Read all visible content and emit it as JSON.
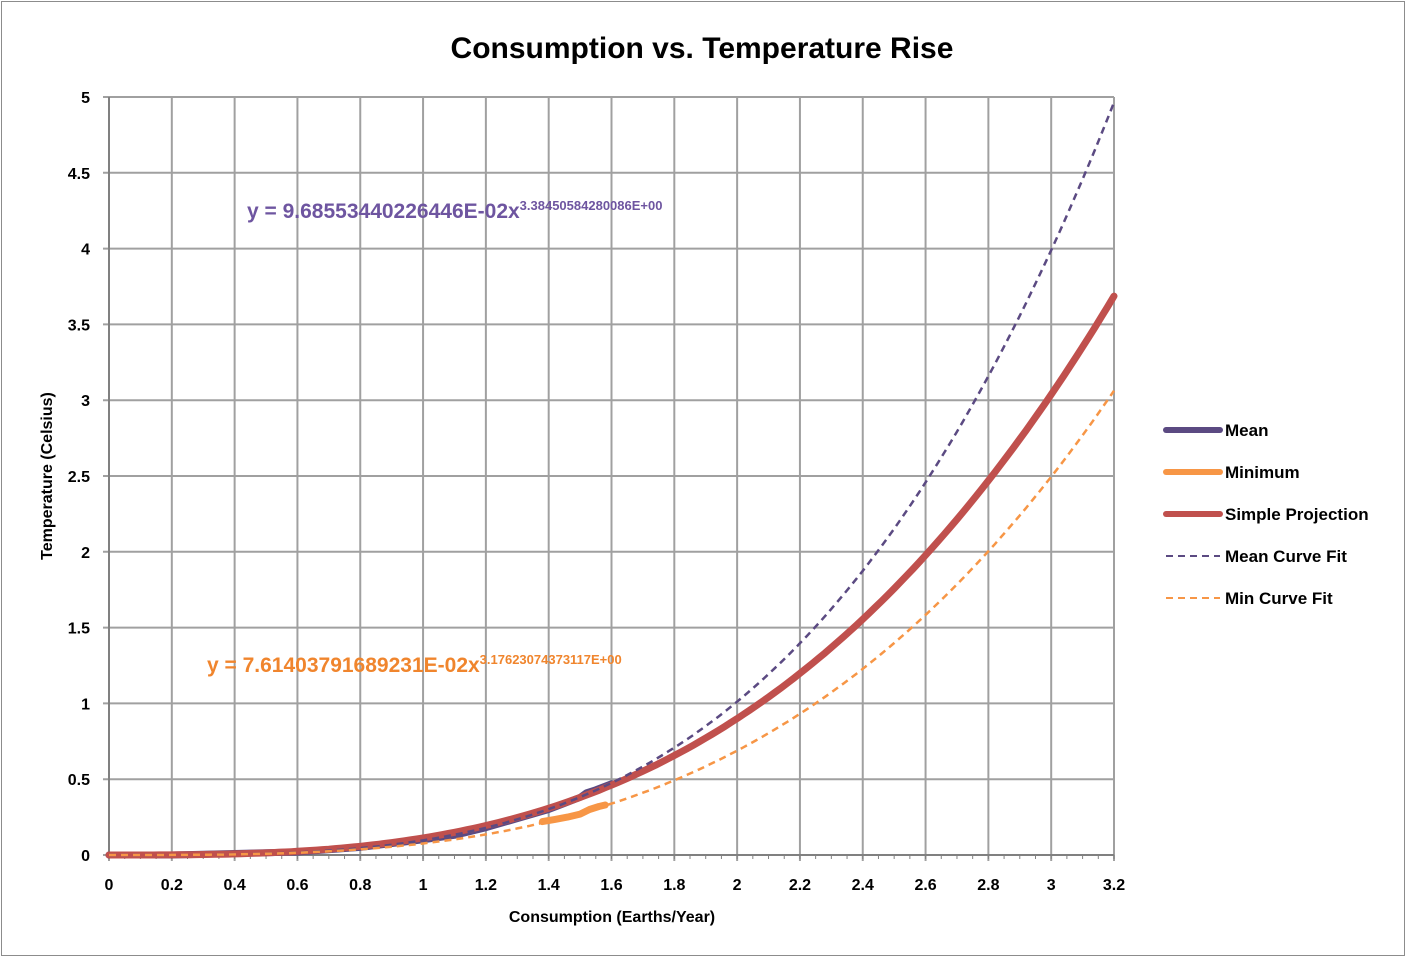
{
  "chart_data": {
    "type": "line",
    "title": "Consumption vs. Temperature Rise",
    "xlabel": "Consumption (Earths/Year)",
    "ylabel": "Temperature (Celsius)",
    "xlim": [
      0,
      3.2
    ],
    "ylim": [
      0,
      5
    ],
    "xticks": [
      "0",
      "0.2",
      "0.4",
      "0.6",
      "0.8",
      "1",
      "1.2",
      "1.4",
      "1.6",
      "1.8",
      "2",
      "2.2",
      "2.4",
      "2.6",
      "2.8",
      "3",
      "3.2"
    ],
    "yticks": [
      "0",
      "0.5",
      "1",
      "1.5",
      "2",
      "2.5",
      "3",
      "3.5",
      "4",
      "4.5",
      "5"
    ],
    "grid": true,
    "legend_position": "right",
    "series": [
      {
        "name": "Mean",
        "style": "solid-thick",
        "color": "#5b4a82",
        "x": [
          0,
          0.2,
          0.4,
          0.6,
          0.8,
          1.0,
          1.1,
          1.2,
          1.3,
          1.4,
          1.45,
          1.5,
          1.52,
          1.55,
          1.6
        ],
        "y": [
          0,
          0.0,
          0.01,
          0.02,
          0.05,
          0.1,
          0.13,
          0.18,
          0.24,
          0.3,
          0.34,
          0.38,
          0.41,
          0.43,
          0.47
        ]
      },
      {
        "name": "Minimum",
        "style": "solid-thick",
        "color": "#f79646",
        "x": [
          1.38,
          1.42,
          1.46,
          1.5,
          1.53,
          1.56,
          1.58
        ],
        "y": [
          0.22,
          0.235,
          0.25,
          0.27,
          0.3,
          0.32,
          0.33
        ]
      },
      {
        "name": "Simple Projection",
        "style": "solid-thick",
        "color": "#c0504d",
        "formula": "0.1125*x^3",
        "coef": 0.1125,
        "exp": 3,
        "x_range": [
          0,
          3.2
        ]
      },
      {
        "name": "Mean Curve Fit",
        "style": "dashed",
        "color": "#5b4a82",
        "coef": 0.0968553440226446,
        "exp": 3.38450584280086,
        "x_range": [
          0,
          3.2
        ]
      },
      {
        "name": "Min Curve Fit",
        "style": "dashed",
        "color": "#f79646",
        "coef": 0.0761403791689231,
        "exp": 3.17623074373117,
        "x_range": [
          0,
          3.2
        ]
      }
    ],
    "annotations": [
      {
        "base": "y = 9.68553440226446E-02x",
        "sup": "3.38450584280086E+00",
        "color": "#6e55a0"
      },
      {
        "base": "y = 7.61403791689231E-02x",
        "sup": "3.17623074373117E+00",
        "color": "#f0852d"
      }
    ]
  }
}
